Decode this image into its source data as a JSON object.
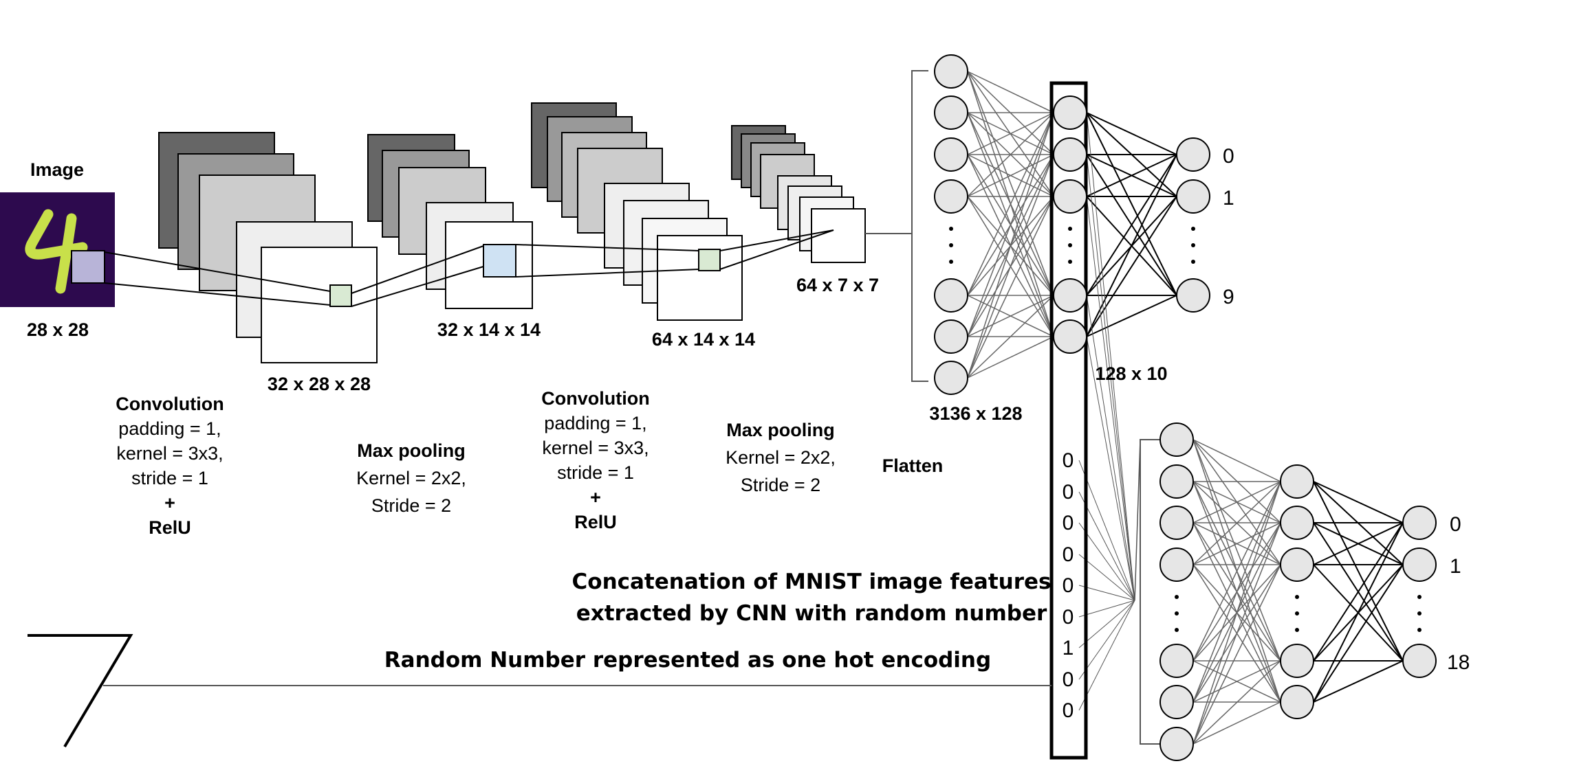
{
  "image_block": {
    "title": "Image",
    "size": "28 x 28"
  },
  "feature_maps": {
    "conv1": "32 x 28 x 28",
    "pool1": "32 x 14 x 14",
    "conv2": "64 x 14 x 14",
    "pool2": "64 x 7 x 7"
  },
  "ops": {
    "conv1": {
      "title": "Convolution",
      "lines": [
        "padding = 1,",
        "kernel = 3x3,",
        "stride = 1",
        "+",
        "RelU"
      ]
    },
    "pool1": {
      "title": "Max pooling",
      "lines": [
        "Kernel = 2x2,",
        "Stride = 2"
      ]
    },
    "conv2": {
      "title": "Convolution",
      "lines": [
        "padding = 1,",
        "kernel = 3x3,",
        "stride = 1",
        "+",
        "RelU"
      ]
    },
    "pool2": {
      "title": "Max pooling",
      "lines": [
        "Kernel = 2x2,",
        "Stride = 2"
      ]
    },
    "flatten": "Flatten"
  },
  "dense": {
    "fc1": "3136 x 128",
    "fc2": "128 x 10",
    "outputs_top": [
      "0",
      "1",
      "9"
    ],
    "outputs_bottom": [
      "0",
      "1",
      "18"
    ]
  },
  "one_hot": [
    "0",
    "0",
    "0",
    "0",
    "0",
    "0",
    "1",
    "0",
    "0"
  ],
  "random_digit": "7",
  "captions": {
    "concat_line1": "Concatenation of MNIST image features",
    "concat_line2": "extracted by CNN with random number",
    "random": "Random Number represented as one hot encoding"
  },
  "colors": {
    "image_bg": "#2d0a4e",
    "digit": "#c8e04a",
    "kernel_input": "#b8b4d8",
    "kernel_conv": "#d9ead3",
    "kernel_pool": "#cfe2f3",
    "node_fill": "#e6e6e6",
    "stack_dark": "#666666",
    "stack_mid": "#999999",
    "stack_light": "#cccccc",
    "stack_pale": "#eeeeee"
  }
}
